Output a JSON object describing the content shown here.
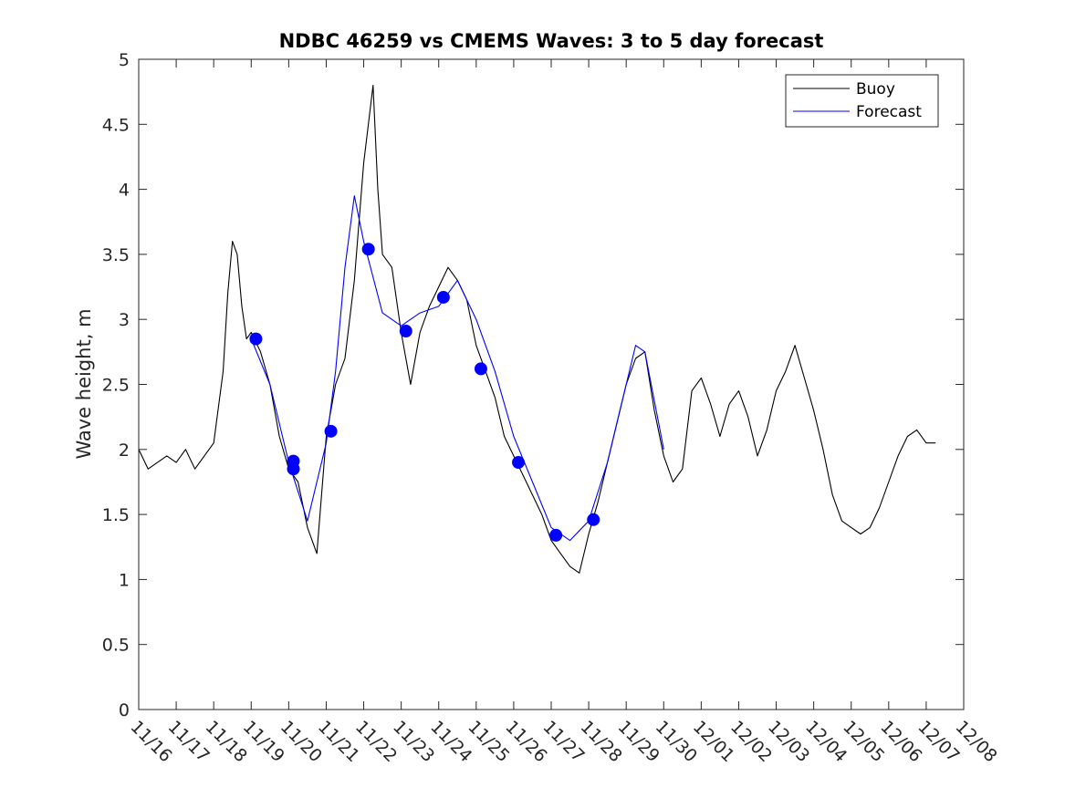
{
  "chart_data": {
    "type": "line",
    "title": "NDBC 46259 vs CMEMS Waves: 3 to 5 day forecast",
    "xlabel": "",
    "ylabel": "Wave height, m",
    "ylim": [
      0,
      5
    ],
    "xlim": [
      "11/16",
      "12/08"
    ],
    "grid": false,
    "legend_position": "top-right",
    "x_ticks": [
      "11/16",
      "11/17",
      "11/18",
      "11/19",
      "11/20",
      "11/21",
      "11/22",
      "11/23",
      "11/24",
      "11/25",
      "11/26",
      "11/27",
      "11/28",
      "11/29",
      "11/30",
      "12/01",
      "12/02",
      "12/03",
      "12/04",
      "12/05",
      "12/06",
      "12/07",
      "12/08"
    ],
    "y_ticks": [
      "0",
      "0.5",
      "1",
      "1.5",
      "2",
      "2.5",
      "3",
      "3.5",
      "4",
      "4.5",
      "5"
    ],
    "series": [
      {
        "name": "Buoy",
        "color": "#000000",
        "x": [
          "11/16 00:00",
          "11/16 06:00",
          "11/16 12:00",
          "11/16 18:00",
          "11/17 00:00",
          "11/17 06:00",
          "11/17 12:00",
          "11/17 18:00",
          "11/18 00:00",
          "11/18 06:00",
          "11/18 09:00",
          "11/18 12:00",
          "11/18 15:00",
          "11/18 18:00",
          "11/18 21:00",
          "11/19 00:00",
          "11/19 06:00",
          "11/19 12:00",
          "11/19 18:00",
          "11/20 00:00",
          "11/20 06:00",
          "11/20 12:00",
          "11/20 18:00",
          "11/21 00:00",
          "11/21 06:00",
          "11/21 12:00",
          "11/21 18:00",
          "11/22 00:00",
          "11/22 06:00",
          "11/22 09:00",
          "11/22 12:00",
          "11/22 18:00",
          "11/23 00:00",
          "11/23 06:00",
          "11/23 12:00",
          "11/23 18:00",
          "11/24 00:00",
          "11/24 06:00",
          "11/24 12:00",
          "11/24 18:00",
          "11/25 00:00",
          "11/25 06:00",
          "11/25 12:00",
          "11/25 18:00",
          "11/26 00:00",
          "11/26 06:00",
          "11/26 12:00",
          "11/26 18:00",
          "11/27 00:00",
          "11/27 06:00",
          "11/27 12:00",
          "11/27 18:00",
          "11/28 00:00",
          "11/28 06:00",
          "11/28 12:00",
          "11/28 18:00",
          "11/29 00:00",
          "11/29 06:00",
          "11/29 12:00",
          "11/29 18:00",
          "11/30 00:00",
          "11/30 06:00",
          "11/30 12:00",
          "11/30 18:00",
          "12/01 00:00",
          "12/01 06:00",
          "12/01 12:00",
          "12/01 18:00",
          "12/02 00:00",
          "12/02 06:00",
          "12/02 12:00",
          "12/02 18:00",
          "12/03 00:00",
          "12/03 06:00",
          "12/03 12:00",
          "12/03 18:00",
          "12/04 00:00",
          "12/04 06:00",
          "12/04 12:00",
          "12/04 18:00",
          "12/05 00:00",
          "12/05 06:00",
          "12/05 12:00",
          "12/05 18:00",
          "12/06 00:00",
          "12/06 06:00",
          "12/06 12:00",
          "12/06 18:00",
          "12/07 00:00",
          "12/07 06:00"
        ],
        "y": [
          2.0,
          1.85,
          1.9,
          1.95,
          1.9,
          2.0,
          1.85,
          1.95,
          2.05,
          2.6,
          3.2,
          3.6,
          3.5,
          3.1,
          2.85,
          2.9,
          2.75,
          2.5,
          2.1,
          1.85,
          1.75,
          1.4,
          1.2,
          2.1,
          2.5,
          2.7,
          3.3,
          4.2,
          4.8,
          4.0,
          3.5,
          3.4,
          2.9,
          2.5,
          2.9,
          3.1,
          3.25,
          3.4,
          3.3,
          3.15,
          2.8,
          2.6,
          2.4,
          2.1,
          1.95,
          1.8,
          1.65,
          1.5,
          1.3,
          1.2,
          1.1,
          1.05,
          1.35,
          1.6,
          1.9,
          2.2,
          2.5,
          2.7,
          2.75,
          2.3,
          1.95,
          1.75,
          1.85,
          2.45,
          2.55,
          2.35,
          2.1,
          2.35,
          2.45,
          2.25,
          1.95,
          2.15,
          2.45,
          2.6,
          2.8,
          2.55,
          2.3,
          2.0,
          1.65,
          1.45,
          1.4,
          1.35,
          1.4,
          1.55,
          1.75,
          1.95,
          2.1,
          2.15,
          2.05,
          2.05
        ]
      },
      {
        "name": "Forecast",
        "color": "#0000ff",
        "x": [
          "11/19 00:00",
          "11/19 12:00",
          "11/20 00:00",
          "11/20 12:00",
          "11/21 00:00",
          "11/21 06:00",
          "11/21 12:00",
          "11/21 18:00",
          "11/22 00:00",
          "11/22 12:00",
          "11/23 00:00",
          "11/23 12:00",
          "11/24 00:00",
          "11/24 12:00",
          "11/25 00:00",
          "11/25 12:00",
          "11/26 00:00",
          "11/26 12:00",
          "11/27 00:00",
          "11/27 12:00",
          "11/28 00:00",
          "11/28 12:00",
          "11/29 00:00",
          "11/29 06:00",
          "11/29 12:00",
          "11/30 00:00"
        ],
        "y": [
          2.85,
          2.5,
          1.9,
          1.45,
          2.05,
          2.6,
          3.4,
          3.95,
          3.6,
          3.05,
          2.95,
          3.05,
          3.1,
          3.3,
          3.0,
          2.6,
          2.1,
          1.75,
          1.4,
          1.3,
          1.45,
          1.9,
          2.5,
          2.8,
          2.75,
          2.0
        ]
      }
    ],
    "markers": {
      "color": "#0000ff",
      "x": [
        "11/19 03:00",
        "11/20 03:00",
        "11/20 03:00",
        "11/21 03:00",
        "11/22 03:00",
        "11/23 03:00",
        "11/24 03:00",
        "11/25 03:00",
        "11/26 03:00",
        "11/27 03:00",
        "11/28 03:00"
      ],
      "y": [
        2.85,
        1.91,
        1.85,
        2.14,
        3.54,
        2.91,
        3.17,
        2.62,
        1.9,
        1.34,
        1.46
      ]
    }
  }
}
